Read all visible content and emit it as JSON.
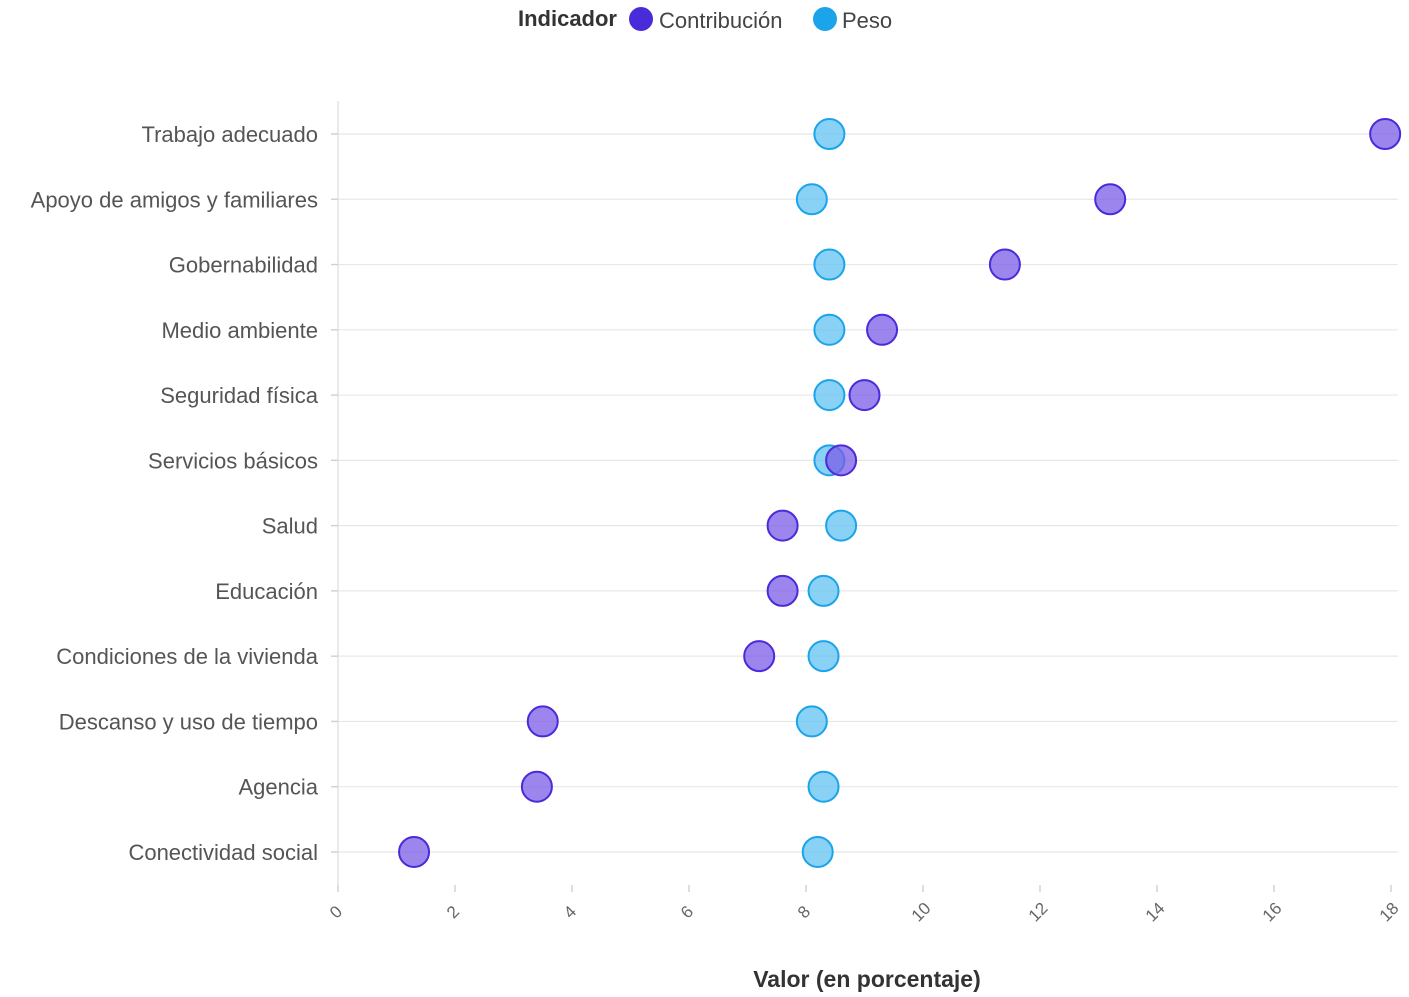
{
  "legend": {
    "title": "Indicador"
  },
  "colors": {
    "contribucion_fill": "#7b5ce6",
    "contribucion_stroke": "#4a2bd9",
    "contribucion_legend": "#4a2bd9",
    "peso_fill": "#62c3f2",
    "peso_stroke": "#1ba4ea",
    "peso_legend": "#1ba4ea"
  },
  "chart_data": {
    "type": "scatter",
    "title": "",
    "xlabel": "Valor (en porcentaje)",
    "ylabel": "",
    "xlim": [
      0,
      18
    ],
    "xticks": [
      "0",
      "2",
      "4",
      "6",
      "8",
      "10",
      "12",
      "14",
      "16",
      "18"
    ],
    "grid": "horizontal",
    "legend_position": "top-center",
    "categories": [
      "Trabajo adecuado",
      "Apoyo de amigos y familiares",
      "Gobernabilidad",
      "Medio ambiente",
      "Seguridad física",
      "Servicios básicos",
      "Salud",
      "Educación",
      "Condiciones de la vivienda",
      "Descanso y uso de tiempo",
      "Agencia",
      "Conectividad social"
    ],
    "series": [
      {
        "name": "Contribución",
        "values": [
          17.9,
          13.2,
          11.4,
          9.3,
          9.0,
          8.6,
          7.6,
          7.6,
          7.2,
          3.5,
          3.4,
          1.3
        ]
      },
      {
        "name": "Peso",
        "values": [
          8.4,
          8.1,
          8.4,
          8.4,
          8.4,
          8.4,
          8.6,
          8.3,
          8.3,
          8.1,
          8.3,
          8.2
        ]
      }
    ]
  }
}
